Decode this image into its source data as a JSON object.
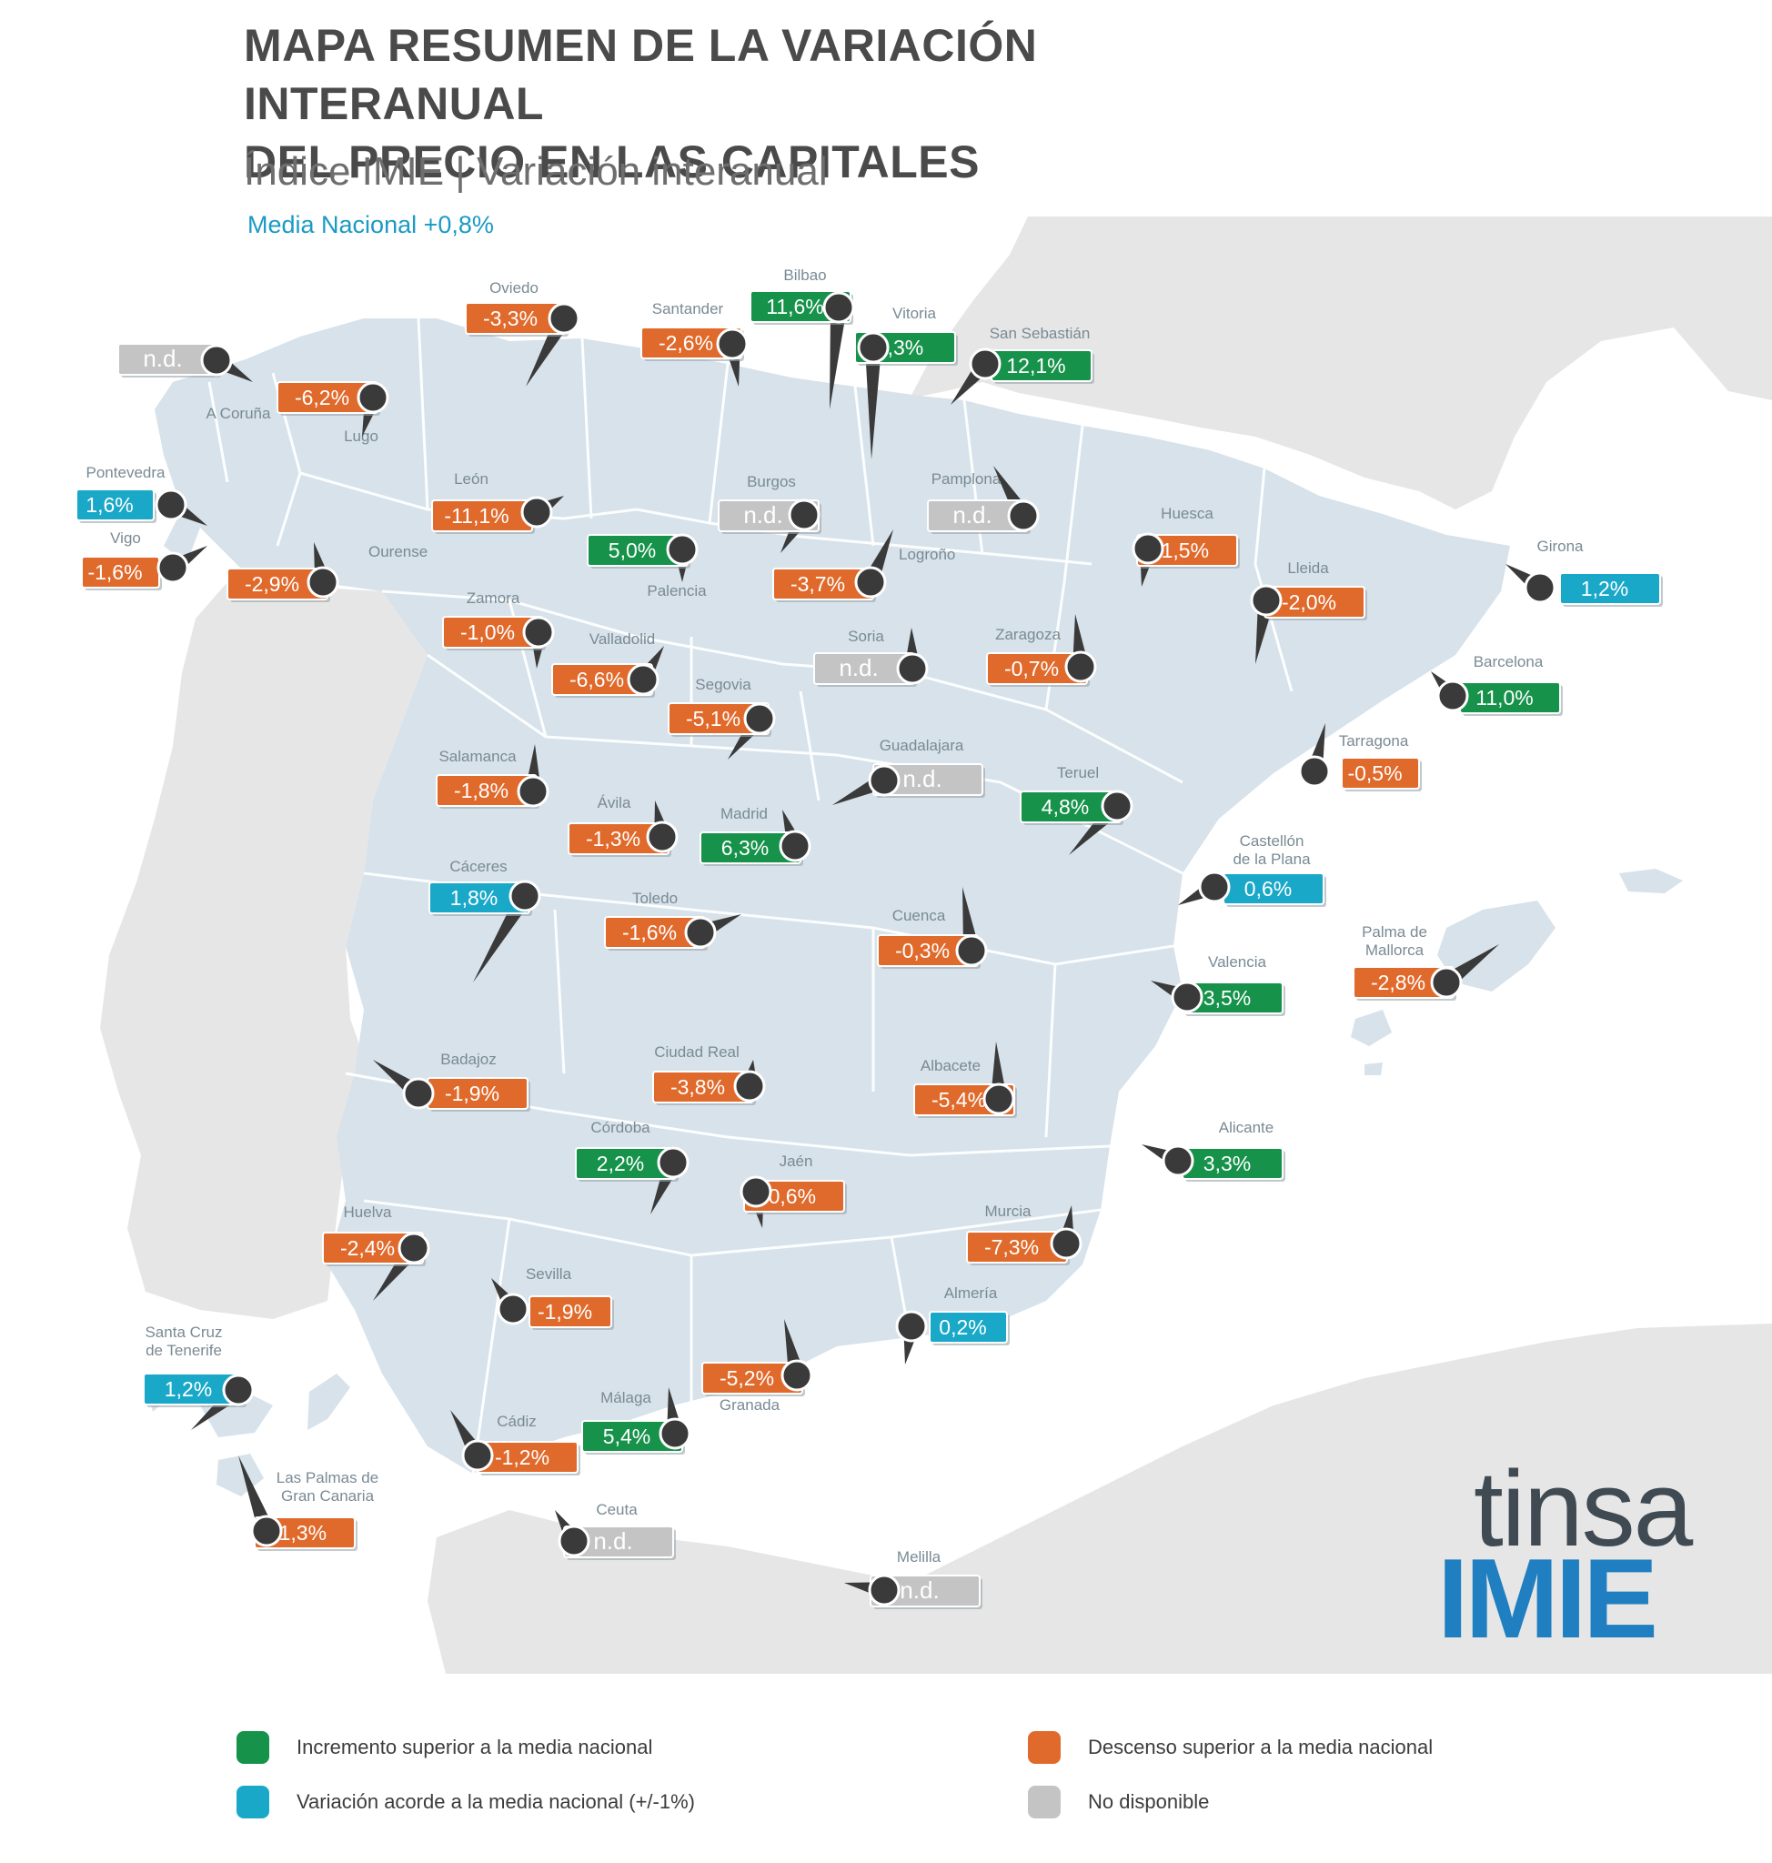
{
  "header": {
    "title_line1": "MAPA RESUMEN DE LA VARIACIÓN INTERANUAL",
    "title_line2": "DEL PRECIO EN LAS CAPITALES",
    "subtitle": "Índice IMIE | Variación interanual",
    "media": "Media Nacional +0,8%"
  },
  "colors": {
    "increase": "#16924a",
    "accord": "#1aa8c8",
    "decrease": "#e06a2c",
    "na": "#c4c4c4",
    "land_spain": "#d7e2ea",
    "land_other": "#e6e6e6",
    "pin": "#3a3a3a",
    "brand_blue": "#1f7fc0"
  },
  "cities": [
    {
      "name": "Oviedo",
      "value": "-3,3%",
      "cat": "decrease"
    },
    {
      "name": "Santander",
      "value": "-2,6%",
      "cat": "decrease"
    },
    {
      "name": "Bilbao",
      "value": "11,6%",
      "cat": "increase"
    },
    {
      "name": "Vitoria",
      "value": "3,3%",
      "cat": "increase"
    },
    {
      "name": "San Sebastián",
      "value": "12,1%",
      "cat": "increase"
    },
    {
      "name": "",
      "value": "n.d.",
      "cat": "na"
    },
    {
      "name": "A Coruña",
      "value": "",
      "cat": ""
    },
    {
      "name": "Lugo",
      "value": "-6,2%",
      "cat": "decrease"
    },
    {
      "name": "Pontevedra",
      "value": "1,6%",
      "cat": "accord"
    },
    {
      "name": "Vigo",
      "value": "-1,6%",
      "cat": "decrease"
    },
    {
      "name": "Ourense",
      "value": "-2,9%",
      "cat": "decrease"
    },
    {
      "name": "León",
      "value": "-11,1%",
      "cat": "decrease"
    },
    {
      "name": "Burgos",
      "value": "n.d.",
      "cat": "na"
    },
    {
      "name": "Pamplona",
      "value": "n.d.",
      "cat": "na"
    },
    {
      "name": "Palencia",
      "value": "5,0%",
      "cat": "increase"
    },
    {
      "name": "Logroño",
      "value": "-3,7%",
      "cat": "decrease"
    },
    {
      "name": "Huesca",
      "value": "-1,5%",
      "cat": "decrease"
    },
    {
      "name": "Girona",
      "value": "1,2%",
      "cat": "accord"
    },
    {
      "name": "Lleida",
      "value": "-2,0%",
      "cat": "decrease"
    },
    {
      "name": "Zamora",
      "value": "-1,0%",
      "cat": "decrease"
    },
    {
      "name": "Valladolid",
      "value": "-6,6%",
      "cat": "decrease"
    },
    {
      "name": "Soria",
      "value": "n.d.",
      "cat": "na"
    },
    {
      "name": "Zaragoza",
      "value": "-0,7%",
      "cat": "decrease"
    },
    {
      "name": "Barcelona",
      "value": "11,0%",
      "cat": "increase"
    },
    {
      "name": "Segovia",
      "value": "-5,1%",
      "cat": "decrease"
    },
    {
      "name": "Tarragona",
      "value": "-0,5%",
      "cat": "decrease"
    },
    {
      "name": "Salamanca",
      "value": "-1,8%",
      "cat": "decrease"
    },
    {
      "name": "Guadalajara",
      "value": "n.d.",
      "cat": "na"
    },
    {
      "name": "Ávila",
      "value": "-1,3%",
      "cat": "decrease"
    },
    {
      "name": "Madrid",
      "value": "6,3%",
      "cat": "increase"
    },
    {
      "name": "Teruel",
      "value": "4,8%",
      "cat": "increase"
    },
    {
      "name": "Castellón de la Plana",
      "value": "0,6%",
      "cat": "accord"
    },
    {
      "name": "Cáceres",
      "value": "1,8%",
      "cat": "accord"
    },
    {
      "name": "Toledo",
      "value": "-1,6%",
      "cat": "decrease"
    },
    {
      "name": "Cuenca",
      "value": "-0,3%",
      "cat": "decrease"
    },
    {
      "name": "Palma de Mallorca",
      "value": "-2,8%",
      "cat": "decrease"
    },
    {
      "name": "Valencia",
      "value": "3,5%",
      "cat": "increase"
    },
    {
      "name": "Badajoz",
      "value": "-1,9%",
      "cat": "decrease"
    },
    {
      "name": "Ciudad Real",
      "value": "-3,8%",
      "cat": "decrease"
    },
    {
      "name": "Albacete",
      "value": "-5,4%",
      "cat": "decrease"
    },
    {
      "name": "Córdoba",
      "value": "2,2%",
      "cat": "increase"
    },
    {
      "name": "Jaén",
      "value": "-0,6%",
      "cat": "decrease"
    },
    {
      "name": "Alicante",
      "value": "3,3%",
      "cat": "increase"
    },
    {
      "name": "Huelva",
      "value": "-2,4%",
      "cat": "decrease"
    },
    {
      "name": "Murcia",
      "value": "-7,3%",
      "cat": "decrease"
    },
    {
      "name": "Sevilla",
      "value": "-1,9%",
      "cat": "decrease"
    },
    {
      "name": "Almería",
      "value": "0,2%",
      "cat": "accord"
    },
    {
      "name": "Santa Cruz de Tenerife",
      "value": "1,2%",
      "cat": "accord"
    },
    {
      "name": "Granada",
      "value": "-5,2%",
      "cat": "decrease"
    },
    {
      "name": "Málaga",
      "value": "5,4%",
      "cat": "increase"
    },
    {
      "name": "Cádiz",
      "value": "-1,2%",
      "cat": "decrease"
    },
    {
      "name": "Las Palmas de Gran Canaria",
      "value": "-1,3%",
      "cat": "decrease"
    },
    {
      "name": "Ceuta",
      "value": "n.d.",
      "cat": "na"
    },
    {
      "name": "Melilla",
      "value": "n.d.",
      "cat": "na"
    }
  ],
  "legend": {
    "increase": "Incremento superior a la media nacional",
    "decrease": "Descenso superior a la media nacional",
    "accord": "Variación acorde a la media nacional (+/-1%)",
    "na": "No disponible"
  },
  "logo": {
    "top": "tinsa",
    "bottom": "IMIE"
  }
}
